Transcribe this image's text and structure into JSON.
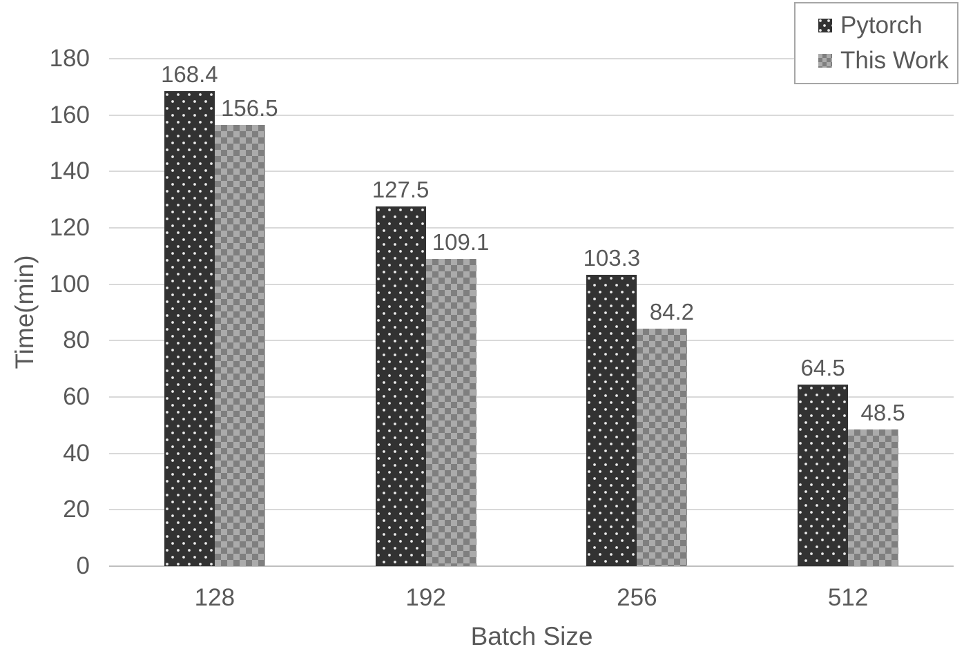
{
  "chart_data": {
    "type": "bar",
    "title": "",
    "categories": [
      "128",
      "192",
      "256",
      "512"
    ],
    "series": [
      {
        "name": "Pytorch",
        "pattern": "dots-dark",
        "values": [
          168.4,
          127.5,
          103.3,
          64.5
        ],
        "labels": [
          "168.4",
          "127.5",
          "103.3",
          "64.5"
        ]
      },
      {
        "name": "This Work",
        "pattern": "checker-gray",
        "values": [
          156.5,
          109.1,
          84.2,
          48.5
        ],
        "labels": [
          "156.5",
          "109.1",
          "84.2",
          "48.5"
        ]
      }
    ],
    "xlabel": "Batch Size",
    "ylabel": "Time(min)",
    "ylim": [
      0,
      180
    ],
    "ytick_step": 20,
    "yticks": [
      "0",
      "20",
      "40",
      "60",
      "80",
      "100",
      "120",
      "140",
      "160",
      "180"
    ],
    "grid": true,
    "legend_position": "top-right",
    "legend_entries": [
      "Pytorch",
      "This Work"
    ]
  },
  "colors": {
    "background": "#ffffff",
    "pytorch_fill": "#323232",
    "pytorch_dots": "#ececec",
    "thiswork_light": "#ababab",
    "thiswork_dark": "#7f7f7f",
    "gridline": "#d9d9d9",
    "axis_line": "#bfbfbf",
    "text": "#595959",
    "legend_border": "#a6a6a6"
  }
}
